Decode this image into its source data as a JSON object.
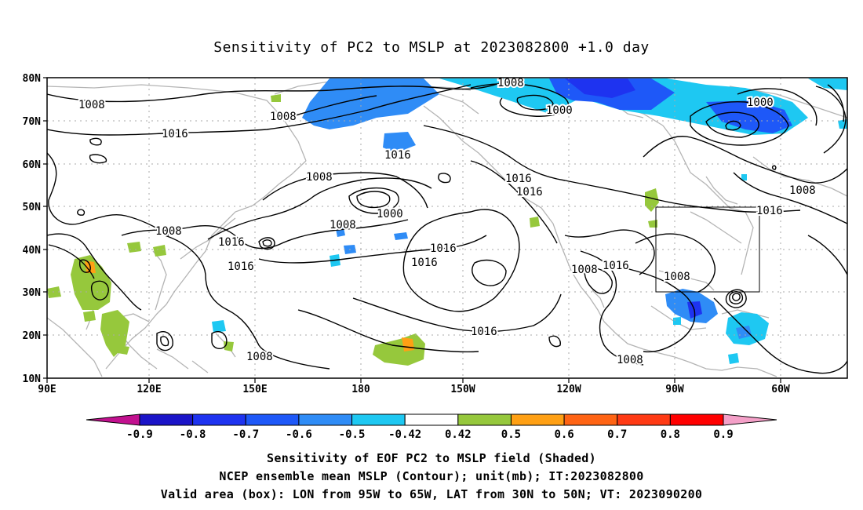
{
  "title": "Sensitivity of PC2 to MSLP at 2023082800 +1.0 day",
  "y_axis_labels": [
    "80N",
    "70N",
    "60N",
    "50N",
    "40N",
    "30N",
    "20N",
    "10N"
  ],
  "x_axis_labels": [
    "90E",
    "120E",
    "150E",
    "180",
    "150W",
    "120W",
    "90W",
    "60W"
  ],
  "colorbar": {
    "tick_labels": [
      "-0.9",
      "-0.8",
      "-0.7",
      "-0.6",
      "-0.5",
      "-0.42",
      "0.42",
      "0.5",
      "0.6",
      "0.7",
      "0.8",
      "0.9"
    ],
    "colors": [
      "#c2118f",
      "#1b14c8",
      "#1e33f0",
      "#1e58f8",
      "#2f8cf6",
      "#1ec8f2",
      "#ffffff",
      "#96c83c",
      "#ffa014",
      "#ff6414",
      "#ff3a14",
      "#ff0000",
      "#f4a0c8"
    ]
  },
  "contour_labels": [
    "1008",
    "1008",
    "1016",
    "1008",
    "1016",
    "1000",
    "1008",
    "1016",
    "1016",
    "1016",
    "1016",
    "1016",
    "1000",
    "1000",
    "1016",
    "1008",
    "1008",
    "1008",
    "1008",
    "1016",
    "1008",
    "1008",
    "1016",
    "1008"
  ],
  "caption": [
    "Sensitivity of EOF PC2 to MSLP field (Shaded)",
    "NCEP ensemble mean MSLP (Contour); unit(mb); IT:2023082800",
    "Valid area (box): LON from 95W to 65W, LAT from 30N to 50N; VT: 2023090200"
  ],
  "valid_box": {
    "lon_min": -95,
    "lon_max": -65,
    "lat_min": 30,
    "lat_max": 50
  },
  "map_extent": {
    "lon_min": 90,
    "lon_max": 325,
    "lat_min": 10,
    "lat_max": 80
  }
}
